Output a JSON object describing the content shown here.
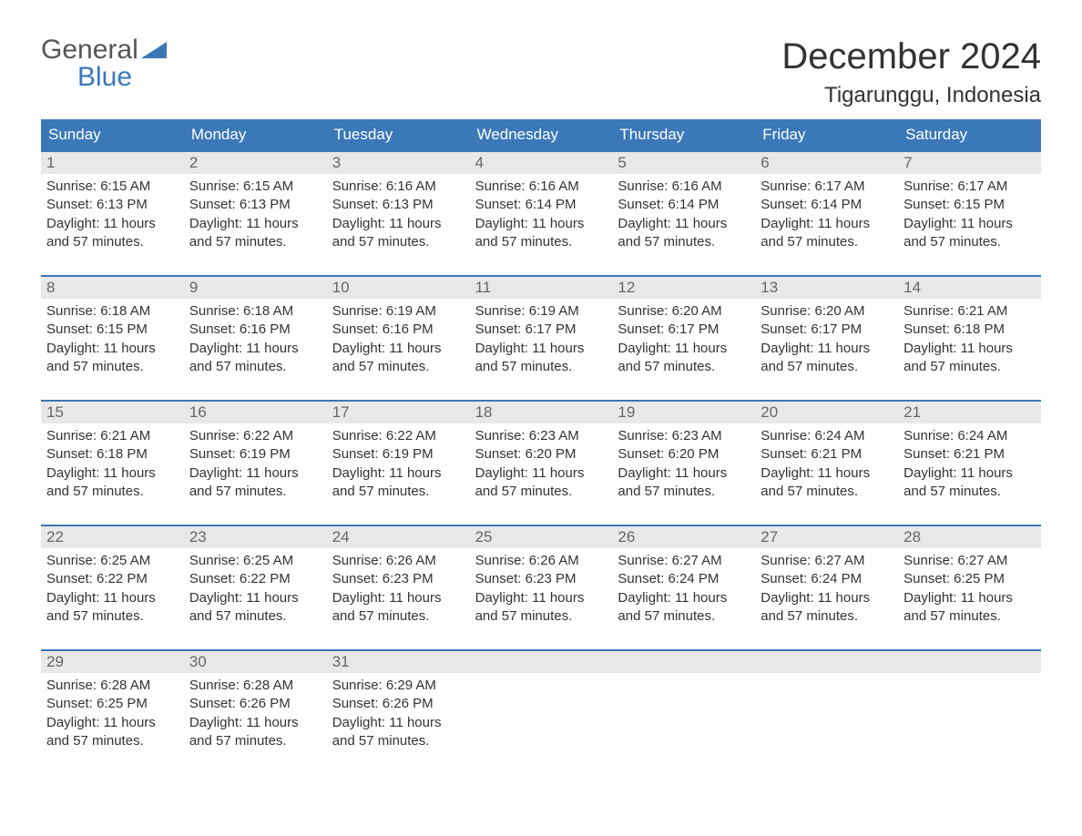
{
  "logo": {
    "general": "General",
    "blue": "Blue"
  },
  "title": "December 2024",
  "location": "Tigarunggu, Indonesia",
  "colors": {
    "header_bg": "#3a78b8",
    "header_text": "#ffffff",
    "daynum_bg": "#e8e8e8",
    "daynum_text": "#666666",
    "body_text": "#333333",
    "rule": "#3a78b8",
    "page_bg": "#ffffff",
    "logo_gray": "#555555",
    "logo_blue": "#3a78b8"
  },
  "typography": {
    "title_fontsize": 40,
    "location_fontsize": 24,
    "dow_fontsize": 17,
    "daynum_fontsize": 17,
    "body_fontsize": 15,
    "logo_fontsize": 30
  },
  "days_of_week": [
    "Sunday",
    "Monday",
    "Tuesday",
    "Wednesday",
    "Thursday",
    "Friday",
    "Saturday"
  ],
  "daylight_text": "Daylight: 11 hours and 57 minutes.",
  "weeks": [
    [
      {
        "n": "1",
        "sr": "6:15 AM",
        "ss": "6:13 PM"
      },
      {
        "n": "2",
        "sr": "6:15 AM",
        "ss": "6:13 PM"
      },
      {
        "n": "3",
        "sr": "6:16 AM",
        "ss": "6:13 PM"
      },
      {
        "n": "4",
        "sr": "6:16 AM",
        "ss": "6:14 PM"
      },
      {
        "n": "5",
        "sr": "6:16 AM",
        "ss": "6:14 PM"
      },
      {
        "n": "6",
        "sr": "6:17 AM",
        "ss": "6:14 PM"
      },
      {
        "n": "7",
        "sr": "6:17 AM",
        "ss": "6:15 PM"
      }
    ],
    [
      {
        "n": "8",
        "sr": "6:18 AM",
        "ss": "6:15 PM"
      },
      {
        "n": "9",
        "sr": "6:18 AM",
        "ss": "6:16 PM"
      },
      {
        "n": "10",
        "sr": "6:19 AM",
        "ss": "6:16 PM"
      },
      {
        "n": "11",
        "sr": "6:19 AM",
        "ss": "6:17 PM"
      },
      {
        "n": "12",
        "sr": "6:20 AM",
        "ss": "6:17 PM"
      },
      {
        "n": "13",
        "sr": "6:20 AM",
        "ss": "6:17 PM"
      },
      {
        "n": "14",
        "sr": "6:21 AM",
        "ss": "6:18 PM"
      }
    ],
    [
      {
        "n": "15",
        "sr": "6:21 AM",
        "ss": "6:18 PM"
      },
      {
        "n": "16",
        "sr": "6:22 AM",
        "ss": "6:19 PM"
      },
      {
        "n": "17",
        "sr": "6:22 AM",
        "ss": "6:19 PM"
      },
      {
        "n": "18",
        "sr": "6:23 AM",
        "ss": "6:20 PM"
      },
      {
        "n": "19",
        "sr": "6:23 AM",
        "ss": "6:20 PM"
      },
      {
        "n": "20",
        "sr": "6:24 AM",
        "ss": "6:21 PM"
      },
      {
        "n": "21",
        "sr": "6:24 AM",
        "ss": "6:21 PM"
      }
    ],
    [
      {
        "n": "22",
        "sr": "6:25 AM",
        "ss": "6:22 PM"
      },
      {
        "n": "23",
        "sr": "6:25 AM",
        "ss": "6:22 PM"
      },
      {
        "n": "24",
        "sr": "6:26 AM",
        "ss": "6:23 PM"
      },
      {
        "n": "25",
        "sr": "6:26 AM",
        "ss": "6:23 PM"
      },
      {
        "n": "26",
        "sr": "6:27 AM",
        "ss": "6:24 PM"
      },
      {
        "n": "27",
        "sr": "6:27 AM",
        "ss": "6:24 PM"
      },
      {
        "n": "28",
        "sr": "6:27 AM",
        "ss": "6:25 PM"
      }
    ],
    [
      {
        "n": "29",
        "sr": "6:28 AM",
        "ss": "6:25 PM"
      },
      {
        "n": "30",
        "sr": "6:28 AM",
        "ss": "6:26 PM"
      },
      {
        "n": "31",
        "sr": "6:29 AM",
        "ss": "6:26 PM"
      },
      null,
      null,
      null,
      null
    ]
  ],
  "labels": {
    "sunrise": "Sunrise:",
    "sunset": "Sunset:"
  }
}
